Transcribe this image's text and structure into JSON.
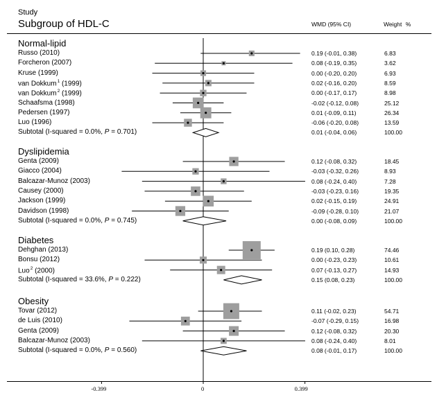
{
  "header": {
    "study_label": "Study",
    "subgroup_label": "Subgroup of HDL-C",
    "wmd_label": "WMD (95% CI)",
    "weight_label": "Weight",
    "percent_label": "%"
  },
  "chart_data": {
    "type": "forest",
    "title": "Subgroup of HDL-C",
    "xlabel": "",
    "ylabel": "",
    "xlim": [
      -0.399,
      0.399
    ],
    "xticks": [
      -0.399,
      0,
      0.399
    ],
    "xtick_labels": [
      "-0.399",
      "0",
      "0.399"
    ],
    "groups": [
      {
        "name": "Normal-lipid",
        "studies": [
          {
            "label": "Russo (2010)",
            "est": 0.19,
            "lo": -0.01,
            "hi": 0.38,
            "ci_text": "0.19 (-0.01, 0.38)",
            "weight": "6.83"
          },
          {
            "label": "Forcheron (2007)",
            "est": 0.08,
            "lo": -0.19,
            "hi": 0.35,
            "ci_text": "0.08 (-0.19, 0.35)",
            "weight": "3.62"
          },
          {
            "label": "Kruse (1999)",
            "est": 0.0,
            "lo": -0.2,
            "hi": 0.2,
            "ci_text": "0.00 (-0.20, 0.20)",
            "weight": "6.93"
          },
          {
            "label": "van Dokkum",
            "sup": "1",
            "year": " (1999)",
            "est": 0.02,
            "lo": -0.16,
            "hi": 0.2,
            "ci_text": "0.02 (-0.16, 0.20)",
            "weight": "8.59"
          },
          {
            "label": "van Dokkum",
            "sup": "2",
            "year": " (1999)",
            "est": 0.0,
            "lo": -0.17,
            "hi": 0.17,
            "ci_text": "0.00 (-0.17, 0.17)",
            "weight": "8.98"
          },
          {
            "label": "Schaafsma (1998)",
            "est": -0.02,
            "lo": -0.12,
            "hi": 0.08,
            "ci_text": "-0.02 (-0.12, 0.08)",
            "weight": "25.12"
          },
          {
            "label": "Pedersen (1997)",
            "est": 0.01,
            "lo": -0.09,
            "hi": 0.11,
            "ci_text": "0.01 (-0.09, 0.11)",
            "weight": "26.34"
          },
          {
            "label": "Luo (1996)",
            "est": -0.06,
            "lo": -0.2,
            "hi": 0.08,
            "ci_text": "-0.06 (-0.20, 0.08)",
            "weight": "13.59"
          }
        ],
        "subtotal": {
          "prefix": "Subtotal  (I-squared = 0.0%, ",
          "p_letter": "P",
          "suffix": " = 0.701)",
          "est": 0.01,
          "lo": -0.04,
          "hi": 0.06,
          "ci_text": "0.01 (-0.04, 0.06)",
          "weight": "100.00"
        }
      },
      {
        "name": "Dyslipidemia",
        "studies": [
          {
            "label": "Genta (2009)",
            "est": 0.12,
            "lo": -0.08,
            "hi": 0.32,
            "ci_text": "0.12 (-0.08, 0.32)",
            "weight": "18.45"
          },
          {
            "label": "Giacco (2004)",
            "est": -0.03,
            "lo": -0.32,
            "hi": 0.26,
            "ci_text": "-0.03 (-0.32, 0.26)",
            "weight": "8.93"
          },
          {
            "label": "Balcazar-Munoz (2003)",
            "est": 0.08,
            "lo": -0.24,
            "hi": 0.4,
            "ci_text": "0.08 (-0.24, 0.40)",
            "weight": "7.28"
          },
          {
            "label": "Causey (2000)",
            "est": -0.03,
            "lo": -0.23,
            "hi": 0.16,
            "ci_text": "-0.03 (-0.23, 0.16)",
            "weight": "19.35"
          },
          {
            "label": "Jackson (1999)",
            "est": 0.02,
            "lo": -0.15,
            "hi": 0.19,
            "ci_text": "0.02 (-0.15, 0.19)",
            "weight": "24.91"
          },
          {
            "label": "Davidson (1998)",
            "est": -0.09,
            "lo": -0.28,
            "hi": 0.1,
            "ci_text": "-0.09 (-0.28, 0.10)",
            "weight": "21.07"
          }
        ],
        "subtotal": {
          "prefix": "Subtotal  (I-squared = 0.0%, ",
          "p_letter": "P",
          "suffix": " = 0.745)",
          "est": 0.0,
          "lo": -0.08,
          "hi": 0.09,
          "ci_text": "0.00 (-0.08, 0.09)",
          "weight": "100.00"
        }
      },
      {
        "name": "Diabetes",
        "studies": [
          {
            "label": "Dehghan (2013)",
            "est": 0.19,
            "lo": 0.1,
            "hi": 0.28,
            "ci_text": "0.19 (0.10, 0.28)",
            "weight": "74.46"
          },
          {
            "label": "Bonsu (2012)",
            "est": 0.0,
            "lo": -0.23,
            "hi": 0.23,
            "ci_text": "0.00 (-0.23, 0.23)",
            "weight": "10.61"
          },
          {
            "label": "Luo",
            "sup": "2",
            "year": " (2000)",
            "est": 0.07,
            "lo": -0.13,
            "hi": 0.27,
            "ci_text": "0.07 (-0.13, 0.27)",
            "weight": "14.93"
          }
        ],
        "subtotal": {
          "prefix": "Subtotal  (I-squared = 33.6%, ",
          "p_letter": "P",
          "suffix": " = 0.222)",
          "est": 0.15,
          "lo": 0.08,
          "hi": 0.23,
          "ci_text": "0.15 (0.08, 0.23)",
          "weight": "100.00"
        }
      },
      {
        "name": "Obesity",
        "studies": [
          {
            "label": "Tovar (2012)",
            "est": 0.11,
            "lo": -0.02,
            "hi": 0.23,
            "ci_text": "0.11 (-0.02, 0.23)",
            "weight": "54.71"
          },
          {
            "label": "de Luis (2010)",
            "est": -0.07,
            "lo": -0.29,
            "hi": 0.15,
            "ci_text": "-0.07 (-0.29, 0.15)",
            "weight": "16.98"
          },
          {
            "label": "Genta (2009)",
            "est": 0.12,
            "lo": -0.08,
            "hi": 0.32,
            "ci_text": "0.12 (-0.08, 0.32)",
            "weight": "20.30"
          },
          {
            "label": "Balcazar-Munoz (2003)",
            "est": 0.08,
            "lo": -0.24,
            "hi": 0.4,
            "ci_text": "0.08 (-0.24, 0.40)",
            "weight": "8.01"
          }
        ],
        "subtotal": {
          "prefix": "Subtotal  (I-squared = 0.0%, ",
          "p_letter": "P",
          "suffix": " = 0.560)",
          "est": 0.08,
          "lo": -0.01,
          "hi": 0.17,
          "ci_text": "0.08 (-0.01, 0.17)",
          "weight": "100.00"
        }
      }
    ]
  }
}
